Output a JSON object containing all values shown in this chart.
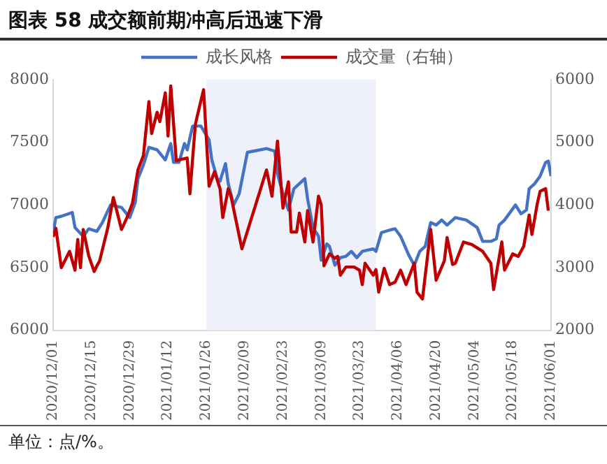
{
  "chart_data": {
    "type": "line",
    "title": "图表 58 成交额前期冲高后迅速下滑",
    "annotations": [
      "单位：点/%。"
    ],
    "xlim": [
      "2020-12-01",
      "2021-06-01"
    ],
    "xticks": [
      {
        "value": "2020-12-01",
        "label": "2020/12/01"
      },
      {
        "value": "2020-12-15",
        "label": "2020/12/15"
      },
      {
        "value": "2020-12-29",
        "label": "2020/12/29"
      },
      {
        "value": "2021-01-12",
        "label": "2021/01/12"
      },
      {
        "value": "2021-01-26",
        "label": "2021/01/26"
      },
      {
        "value": "2021-02-09",
        "label": "2021/02/09"
      },
      {
        "value": "2021-02-23",
        "label": "2021/02/23"
      },
      {
        "value": "2021-03-09",
        "label": "2021/03/09"
      },
      {
        "value": "2021-03-23",
        "label": "2021/03/23"
      },
      {
        "value": "2021-04-06",
        "label": "2021/04/06"
      },
      {
        "value": "2021-04-20",
        "label": "2021/04/20"
      },
      {
        "value": "2021-05-04",
        "label": "2021/05/04"
      },
      {
        "value": "2021-05-18",
        "label": "2021/05/18"
      },
      {
        "value": "2021-06-01",
        "label": "2021/06/01"
      }
    ],
    "ylim": [
      6000,
      8000
    ],
    "yticks": [
      6000,
      6500,
      7000,
      7500,
      8000
    ],
    "y2lim": [
      2000,
      6000
    ],
    "y2ticks": [
      2000,
      3000,
      4000,
      5000,
      6000
    ],
    "grid": false,
    "legend": "top",
    "marker": "none",
    "line_style": "solid",
    "bands": [
      {
        "axis": "x",
        "from": "2021-01-26",
        "to": "2021-03-29",
        "color": "#eef1f9"
      }
    ],
    "series": [
      {
        "name": "成长风格",
        "color": "#4472c4",
        "x": [
          "2020-12-01",
          "2020-12-02",
          "2020-12-04",
          "2020-12-08",
          "2020-12-09",
          "2020-12-12",
          "2020-12-14",
          "2020-12-17",
          "2020-12-19",
          "2020-12-22",
          "2020-12-26",
          "2020-12-29",
          "2020-12-31",
          "2021-01-01",
          "2021-01-03",
          "2021-01-05",
          "2021-01-08",
          "2021-01-11",
          "2021-01-13",
          "2021-01-14",
          "2021-01-16",
          "2021-01-18",
          "2021-01-19",
          "2021-01-21",
          "2021-01-24",
          "2021-01-27",
          "2021-01-28",
          "2021-01-30",
          "2021-01-31",
          "2021-02-02",
          "2021-02-03",
          "2021-02-05",
          "2021-02-07",
          "2021-02-10",
          "2021-02-17",
          "2021-02-20",
          "2021-02-21",
          "2021-02-23",
          "2021-02-25",
          "2021-02-27",
          "2021-03-03",
          "2021-03-04",
          "2021-03-06",
          "2021-03-08",
          "2021-03-09",
          "2021-03-11",
          "2021-03-12",
          "2021-03-14",
          "2021-03-16",
          "2021-03-18",
          "2021-03-20",
          "2021-03-22",
          "2021-03-24",
          "2021-03-28",
          "2021-03-29",
          "2021-03-31",
          "2021-04-03",
          "2021-04-05",
          "2021-04-07",
          "2021-04-10",
          "2021-04-12",
          "2021-04-14",
          "2021-04-16",
          "2021-04-18",
          "2021-04-20",
          "2021-04-22",
          "2021-04-24",
          "2021-04-27",
          "2021-05-01",
          "2021-05-05",
          "2021-05-07",
          "2021-05-10",
          "2021-05-12",
          "2021-05-13",
          "2021-05-15",
          "2021-05-17",
          "2021-05-19",
          "2021-05-21",
          "2021-05-23",
          "2021-05-24",
          "2021-05-26",
          "2021-05-28",
          "2021-05-30",
          "2021-05-31",
          "2021-06-01"
        ],
        "values": [
          6780,
          6900,
          6910,
          6940,
          6820,
          6750,
          6810,
          6790,
          6860,
          7000,
          6980,
          6900,
          7020,
          7210,
          7320,
          7460,
          7440,
          7360,
          7490,
          7340,
          7340,
          7490,
          7440,
          7630,
          7630,
          7520,
          7360,
          7210,
          7190,
          7330,
          7170,
          7000,
          7090,
          7420,
          7450,
          7430,
          7250,
          7090,
          6960,
          7130,
          7210,
          7050,
          6820,
          6750,
          6560,
          6690,
          6670,
          6520,
          6580,
          6590,
          6630,
          6580,
          6630,
          6650,
          6630,
          6780,
          6800,
          6810,
          6750,
          6600,
          6520,
          6630,
          6670,
          6860,
          6840,
          6880,
          6840,
          6900,
          6880,
          6820,
          6710,
          6710,
          6730,
          6840,
          6880,
          6940,
          7000,
          6930,
          6960,
          7130,
          7170,
          7230,
          7340,
          7350,
          7230
        ]
      },
      {
        "name": "成交量（右轴）",
        "color": "#c00000",
        "axis": "y2",
        "x": [
          "2020-12-01",
          "2020-12-02",
          "2020-12-04",
          "2020-12-07",
          "2020-12-09",
          "2020-12-10",
          "2020-12-11",
          "2020-12-12",
          "2020-12-14",
          "2020-12-16",
          "2020-12-17",
          "2020-12-18",
          "2020-12-21",
          "2020-12-23",
          "2020-12-26",
          "2020-12-28",
          "2020-12-30",
          "2021-01-01",
          "2021-01-03",
          "2021-01-05",
          "2021-01-06",
          "2021-01-08",
          "2021-01-09",
          "2021-01-11",
          "2021-01-12",
          "2021-01-13",
          "2021-01-15",
          "2021-01-19",
          "2021-01-20",
          "2021-01-21",
          "2021-01-22",
          "2021-01-23",
          "2021-01-25",
          "2021-01-27",
          "2021-01-29",
          "2021-01-31",
          "2021-02-01",
          "2021-02-03",
          "2021-02-04",
          "2021-02-06",
          "2021-02-08",
          "2021-02-17",
          "2021-02-19",
          "2021-02-21",
          "2021-02-23",
          "2021-02-25",
          "2021-02-26",
          "2021-02-28",
          "2021-03-01",
          "2021-03-03",
          "2021-03-04",
          "2021-03-06",
          "2021-03-08",
          "2021-03-09",
          "2021-03-10",
          "2021-03-12",
          "2021-03-14",
          "2021-03-15",
          "2021-03-16",
          "2021-03-18",
          "2021-03-21",
          "2021-03-23",
          "2021-03-24",
          "2021-03-25",
          "2021-03-28",
          "2021-03-29",
          "2021-03-30",
          "2021-04-01",
          "2021-04-03",
          "2021-04-05",
          "2021-04-07",
          "2021-04-09",
          "2021-04-12",
          "2021-04-13",
          "2021-04-15",
          "2021-04-18",
          "2021-04-20",
          "2021-04-23",
          "2021-04-24",
          "2021-04-26",
          "2021-04-27",
          "2021-04-30",
          "2021-05-03",
          "2021-05-07",
          "2021-05-10",
          "2021-05-11",
          "2021-05-14",
          "2021-05-15",
          "2021-05-18",
          "2021-05-20",
          "2021-05-22",
          "2021-05-24",
          "2021-05-25",
          "2021-05-27",
          "2021-05-28",
          "2021-05-30",
          "2021-05-31"
        ],
        "values": [
          3490,
          3630,
          3000,
          3260,
          2960,
          3450,
          3000,
          3610,
          3190,
          2940,
          3030,
          3110,
          3640,
          4120,
          3610,
          3800,
          4030,
          4560,
          4790,
          5650,
          5140,
          5480,
          5330,
          5790,
          5100,
          5900,
          4710,
          4750,
          4180,
          4750,
          5290,
          5480,
          5840,
          4300,
          4530,
          4260,
          3800,
          4260,
          4140,
          3720,
          3300,
          4560,
          4140,
          5020,
          3950,
          4370,
          3570,
          3570,
          3870,
          3410,
          3910,
          3410,
          4140,
          4000,
          3030,
          3220,
          3150,
          3180,
          2880,
          3010,
          3010,
          2960,
          2730,
          3070,
          2880,
          2970,
          2610,
          2990,
          2730,
          2770,
          2960,
          2730,
          3070,
          2610,
          2500,
          3610,
          2800,
          3110,
          3480,
          3050,
          3070,
          3410,
          3370,
          3260,
          3070,
          2650,
          3410,
          2960,
          3220,
          3180,
          3340,
          3840,
          3530,
          4030,
          4220,
          4260,
          3910
        ]
      }
    ]
  }
}
